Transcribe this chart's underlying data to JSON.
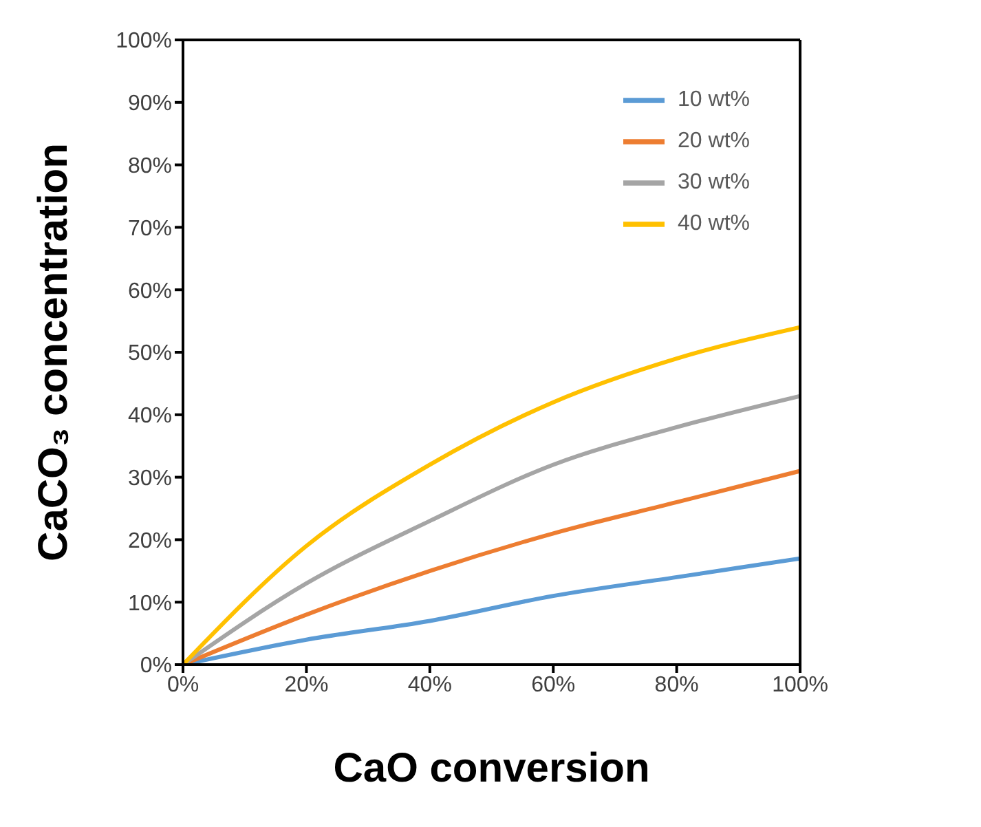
{
  "chart_data": {
    "type": "line",
    "xlabel": "CaO conversion",
    "ylabel": "CaCO₃ concentration",
    "x": [
      0,
      20,
      40,
      60,
      80,
      100
    ],
    "series": [
      {
        "name": "10 wt%",
        "color": "#5b9bd5",
        "values": [
          0,
          4,
          7,
          11,
          14,
          17
        ]
      },
      {
        "name": "20 wt%",
        "color": "#ed7d31",
        "values": [
          0,
          8,
          15,
          21,
          26,
          31
        ]
      },
      {
        "name": "30 wt%",
        "color": "#a5a5a5",
        "values": [
          0,
          13,
          23,
          32,
          38,
          43
        ]
      },
      {
        "name": "40 wt%",
        "color": "#ffc000",
        "values": [
          0,
          19,
          32,
          42,
          49,
          54
        ]
      }
    ],
    "xlim": [
      0,
      100
    ],
    "ylim": [
      0,
      100
    ],
    "xticks": [
      {
        "value": 0,
        "label": "0%"
      },
      {
        "value": 20,
        "label": "20%"
      },
      {
        "value": 40,
        "label": "40%"
      },
      {
        "value": 60,
        "label": "60%"
      },
      {
        "value": 80,
        "label": "80%"
      },
      {
        "value": 100,
        "label": "100%"
      }
    ],
    "yticks": [
      {
        "value": 0,
        "label": "0%"
      },
      {
        "value": 10,
        "label": "10%"
      },
      {
        "value": 20,
        "label": "20%"
      },
      {
        "value": 30,
        "label": "30%"
      },
      {
        "value": 40,
        "label": "40%"
      },
      {
        "value": 50,
        "label": "50%"
      },
      {
        "value": 60,
        "label": "60%"
      },
      {
        "value": 70,
        "label": "70%"
      },
      {
        "value": 80,
        "label": "80%"
      },
      {
        "value": 90,
        "label": "90%"
      },
      {
        "value": 100,
        "label": "100%"
      }
    ],
    "grid": false,
    "legend": "top right",
    "marker": "none",
    "line_style": "solid"
  }
}
